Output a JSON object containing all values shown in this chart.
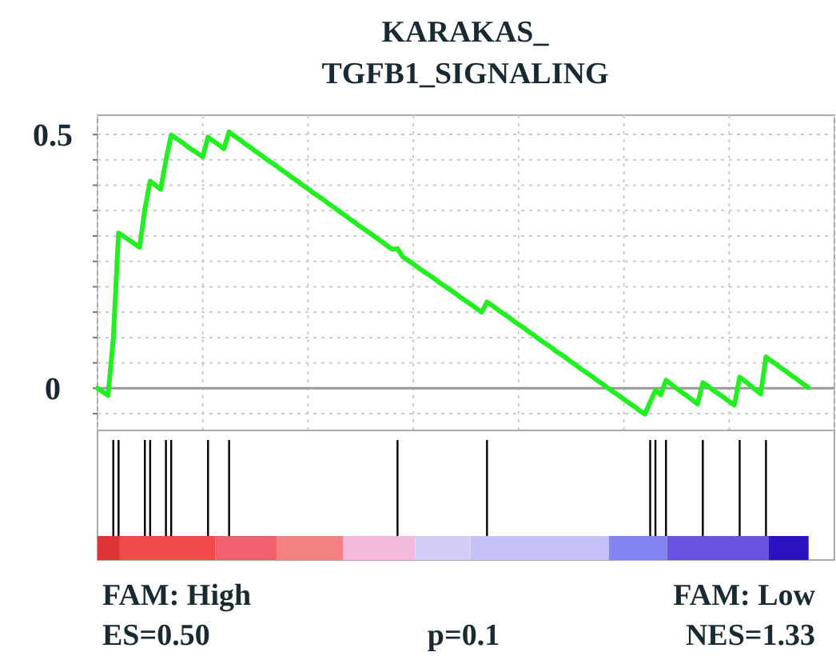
{
  "chart_data": {
    "type": "line",
    "title": "KARAKAS_\nTGFB1_SIGNALING",
    "categories": [
      null,
      null,
      null,
      null,
      null,
      null,
      null,
      null,
      null,
      null,
      null,
      null,
      null,
      null,
      null,
      null,
      null,
      null,
      null,
      null,
      null,
      null,
      null,
      null,
      null,
      null,
      null,
      null,
      null,
      null,
      null,
      null,
      null,
      null,
      null,
      null,
      null,
      null,
      null,
      null,
      null,
      null,
      null,
      null,
      null,
      null,
      null,
      null,
      null,
      null,
      null,
      null,
      null,
      null,
      null,
      null,
      null,
      null,
      null,
      null,
      null,
      null,
      null,
      null,
      null,
      null,
      null,
      null,
      null,
      null,
      null,
      null,
      null,
      null,
      null,
      null,
      null,
      null,
      null,
      null,
      null,
      null,
      null,
      null,
      null,
      null,
      null,
      null,
      null,
      null,
      null,
      null,
      null,
      null,
      null,
      null,
      null,
      null,
      null,
      null,
      null,
      null,
      null,
      null,
      null,
      null,
      null,
      null,
      null,
      null,
      null,
      null,
      null,
      null,
      null,
      null,
      null,
      null,
      null,
      null,
      null,
      null,
      null,
      null,
      null,
      null,
      null,
      null,
      null,
      null,
      null,
      null,
      null,
      null,
      null,
      null,
      null,
      null,
      null,
      null,
      null
    ],
    "series": [
      {
        "color": "#22ee22",
        "values": [
          0,
          -0.007,
          -0.014,
          0.098,
          0.306,
          0.299,
          0.292,
          0.285,
          0.278,
          0.353,
          0.408,
          0.4,
          0.392,
          0.449,
          0.499,
          0.492,
          0.485,
          0.477,
          0.47,
          0.463,
          0.456,
          0.495,
          0.487,
          0.48,
          0.472,
          0.505,
          0.497,
          0.49,
          0.482,
          0.475,
          0.467,
          0.46,
          0.452,
          0.445,
          0.438,
          0.43,
          0.423,
          0.415,
          0.408,
          0.4,
          0.393,
          0.385,
          0.378,
          0.371,
          0.363,
          0.356,
          0.348,
          0.341,
          0.333,
          0.326,
          0.318,
          0.311,
          0.304,
          0.296,
          0.289,
          0.281,
          0.274,
          0.275,
          0.259,
          0.252,
          0.245,
          0.237,
          0.23,
          0.223,
          0.216,
          0.208,
          0.201,
          0.194,
          0.187,
          0.179,
          0.172,
          0.165,
          0.157,
          0.15,
          0.17,
          0.163,
          0.155,
          0.148,
          0.141,
          0.133,
          0.126,
          0.119,
          0.111,
          0.104,
          0.096,
          0.089,
          0.082,
          0.074,
          0.067,
          0.06,
          0.052,
          0.045,
          0.037,
          0.03,
          0.023,
          0.015,
          0.008,
          0,
          -0.007,
          -0.014,
          -0.022,
          -0.029,
          -0.036,
          -0.044,
          -0.051,
          -0.027,
          -0.004,
          -0.013,
          0.016,
          0.008,
          0,
          -0.008,
          -0.015,
          -0.023,
          -0.031,
          0.011,
          0.004,
          -0.004,
          -0.011,
          -0.018,
          -0.026,
          -0.033,
          0.022,
          0.014,
          0.006,
          -0.003,
          -0.011,
          0.062,
          0.054,
          0.047,
          0.039,
          0.032,
          0.024,
          0.017,
          0.009,
          0.002,
          null,
          null,
          null,
          null,
          null
        ]
      }
    ],
    "ylim": [
      -0.083,
      0.538
    ],
    "yticks": [
      {
        "value": -0.05,
        "label": null
      },
      0,
      {
        "value": 0.05,
        "label": null
      },
      {
        "value": 0.1,
        "label": null
      },
      {
        "value": 0.15,
        "label": null
      },
      {
        "value": 0.2,
        "label": null
      },
      {
        "value": 0.25,
        "label": null
      },
      {
        "value": 0.3,
        "label": null
      },
      {
        "value": 0.35,
        "label": null
      },
      {
        "value": 0.4,
        "label": null
      },
      {
        "value": 0.45,
        "label": null
      },
      0.5
    ],
    "grid": true,
    "line_style": "solid",
    "ref_lines": [
      {
        "axis": "y",
        "value": 0,
        "color": "#999999"
      }
    ],
    "annotations": [
      "FAM: High",
      "FAM: Low",
      "ES=0.50",
      "p=0.1",
      "NES=1.33"
    ]
  }
}
